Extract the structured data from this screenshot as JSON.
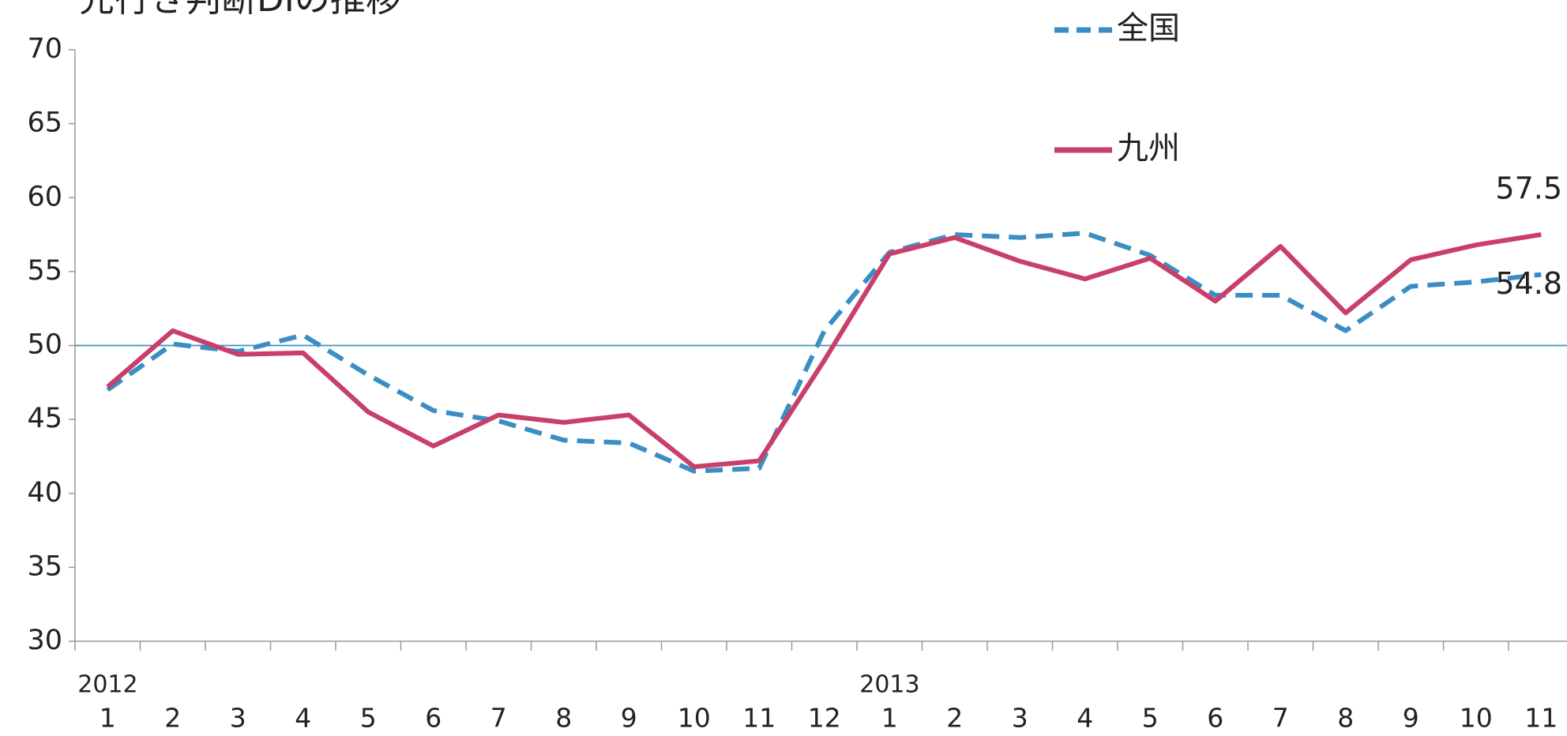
{
  "chart_data": {
    "type": "line",
    "title": "先行き判断DIの推移",
    "categories": [
      "1",
      "2",
      "3",
      "4",
      "5",
      "6",
      "7",
      "8",
      "9",
      "10",
      "11",
      "12",
      "1",
      "2",
      "3",
      "4",
      "5",
      "6",
      "7",
      "8",
      "9",
      "10",
      "11"
    ],
    "year_labels": [
      "2012",
      null,
      null,
      null,
      null,
      null,
      null,
      null,
      null,
      null,
      null,
      null,
      "2013",
      null,
      null,
      null,
      null,
      null,
      null,
      null,
      null,
      null,
      null
    ],
    "series": [
      {
        "name": "全国",
        "color": "#3a8ec4",
        "dashed": true,
        "values": [
          47.0,
          50.1,
          49.6,
          50.7,
          48.0,
          45.6,
          44.9,
          43.6,
          43.4,
          41.5,
          41.7,
          51.0,
          56.3,
          57.5,
          57.3,
          57.6,
          56.1,
          53.4,
          53.4,
          51.0,
          54.0,
          54.3,
          54.8
        ]
      },
      {
        "name": "九州",
        "color": "#c8406a",
        "dashed": false,
        "values": [
          47.2,
          51.0,
          49.4,
          49.5,
          45.5,
          43.2,
          45.3,
          44.8,
          45.3,
          41.8,
          42.2,
          49.0,
          56.2,
          57.3,
          55.7,
          54.5,
          55.9,
          53.0,
          56.7,
          52.2,
          55.8,
          56.8,
          57.5
        ]
      }
    ],
    "hline": 50,
    "ylim": [
      30,
      70
    ],
    "yticks": [
      30,
      35,
      40,
      45,
      50,
      55,
      60,
      65,
      70
    ]
  }
}
